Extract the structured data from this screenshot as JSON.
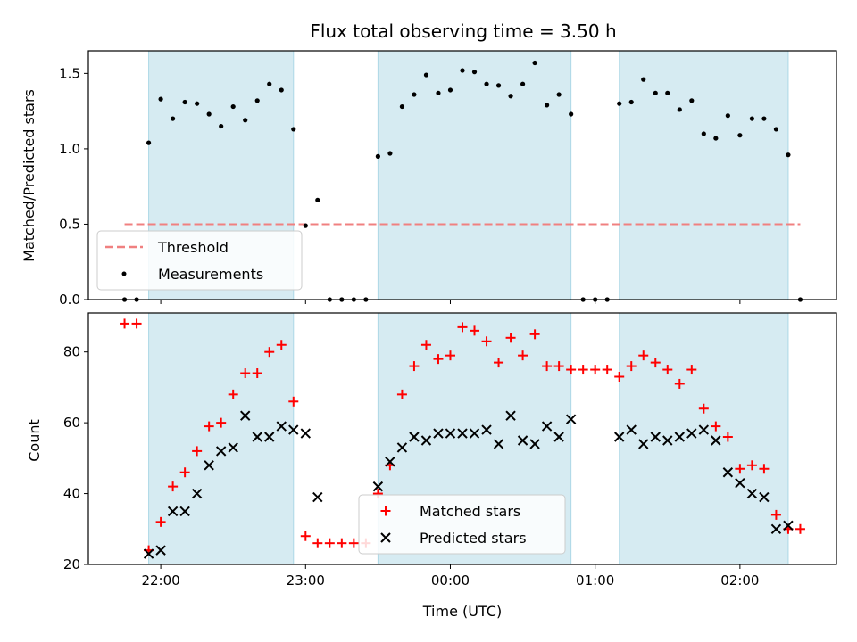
{
  "title": "Flux total observing time = 3.50 h",
  "colors": {
    "shade": "#add8e6",
    "threshold": "#f08080",
    "measurement": "#000000",
    "matched": "#ff0000",
    "predicted": "#000000"
  },
  "chart_data": [
    {
      "type": "scatter",
      "ylabel": "Matched/Predicted stars",
      "ylim": [
        0,
        1.65
      ],
      "yticks": [
        0.0,
        0.5,
        1.0,
        1.5
      ],
      "ytick_labels": [
        "0.0",
        "0.5",
        "1.0",
        "1.5"
      ],
      "shaded_intervals": [
        [
          "21:55",
          "22:55"
        ],
        [
          "23:30",
          "00:50"
        ],
        [
          "01:10",
          "02:20"
        ]
      ],
      "threshold": {
        "name": "Threshold",
        "value": 0.5,
        "x_range": [
          "21:45",
          "02:25"
        ]
      },
      "legend": {
        "position": "lower-left",
        "entries": [
          "Threshold",
          "Measurements"
        ]
      },
      "series": [
        {
          "name": "Measurements",
          "marker": "dot",
          "points": [
            [
              "21:45",
              0.0
            ],
            [
              "21:50",
              0.0
            ],
            [
              "21:55",
              1.04
            ],
            [
              "22:00",
              1.33
            ],
            [
              "22:05",
              1.2
            ],
            [
              "22:10",
              1.31
            ],
            [
              "22:15",
              1.3
            ],
            [
              "22:20",
              1.23
            ],
            [
              "22:25",
              1.15
            ],
            [
              "22:30",
              1.28
            ],
            [
              "22:35",
              1.19
            ],
            [
              "22:40",
              1.32
            ],
            [
              "22:45",
              1.43
            ],
            [
              "22:50",
              1.39
            ],
            [
              "22:55",
              1.13
            ],
            [
              "23:00",
              0.49
            ],
            [
              "23:05",
              0.66
            ],
            [
              "23:10",
              0.0
            ],
            [
              "23:15",
              0.0
            ],
            [
              "23:20",
              0.0
            ],
            [
              "23:25",
              0.0
            ],
            [
              "23:30",
              0.95
            ],
            [
              "23:35",
              0.97
            ],
            [
              "23:40",
              1.28
            ],
            [
              "23:45",
              1.36
            ],
            [
              "23:50",
              1.49
            ],
            [
              "23:55",
              1.37
            ],
            [
              "00:00",
              1.39
            ],
            [
              "00:05",
              1.52
            ],
            [
              "00:10",
              1.51
            ],
            [
              "00:15",
              1.43
            ],
            [
              "00:20",
              1.42
            ],
            [
              "00:25",
              1.35
            ],
            [
              "00:30",
              1.43
            ],
            [
              "00:35",
              1.57
            ],
            [
              "00:40",
              1.29
            ],
            [
              "00:45",
              1.36
            ],
            [
              "00:50",
              1.23
            ],
            [
              "00:55",
              0.0
            ],
            [
              "01:00",
              0.0
            ],
            [
              "01:05",
              0.0
            ],
            [
              "01:10",
              1.3
            ],
            [
              "01:15",
              1.31
            ],
            [
              "01:20",
              1.46
            ],
            [
              "01:25",
              1.37
            ],
            [
              "01:30",
              1.37
            ],
            [
              "01:35",
              1.26
            ],
            [
              "01:40",
              1.32
            ],
            [
              "01:45",
              1.1
            ],
            [
              "01:50",
              1.07
            ],
            [
              "01:55",
              1.22
            ],
            [
              "02:00",
              1.09
            ],
            [
              "02:05",
              1.2
            ],
            [
              "02:10",
              1.2
            ],
            [
              "02:15",
              1.13
            ],
            [
              "02:20",
              0.96
            ],
            [
              "02:25",
              0.0
            ]
          ]
        }
      ]
    },
    {
      "type": "scatter",
      "ylabel": "Count",
      "xlabel": "Time (UTC)",
      "ylim": [
        20,
        91
      ],
      "yticks": [
        20,
        40,
        60,
        80
      ],
      "ytick_labels": [
        "20",
        "40",
        "60",
        "80"
      ],
      "xticks": [
        "22:00",
        "23:00",
        "00:00",
        "01:00",
        "02:00"
      ],
      "xtick_labels": [
        "22:00",
        "23:00",
        "00:00",
        "01:00",
        "02:00"
      ],
      "x_range": [
        "21:30",
        "02:40"
      ],
      "shaded_intervals": [
        [
          "21:55",
          "22:55"
        ],
        [
          "23:30",
          "00:50"
        ],
        [
          "01:10",
          "02:20"
        ]
      ],
      "legend": {
        "position": "lower-center",
        "entries": [
          "Matched stars",
          "Predicted stars"
        ]
      },
      "series": [
        {
          "name": "Matched stars",
          "marker": "plus",
          "points": [
            [
              "21:45",
              88
            ],
            [
              "21:50",
              88
            ],
            [
              "21:55",
              24
            ],
            [
              "22:00",
              32
            ],
            [
              "22:05",
              42
            ],
            [
              "22:10",
              46
            ],
            [
              "22:15",
              52
            ],
            [
              "22:20",
              59
            ],
            [
              "22:25",
              60
            ],
            [
              "22:30",
              68
            ],
            [
              "22:35",
              74
            ],
            [
              "22:40",
              74
            ],
            [
              "22:45",
              80
            ],
            [
              "22:50",
              82
            ],
            [
              "22:55",
              66
            ],
            [
              "23:00",
              28
            ],
            [
              "23:05",
              26
            ],
            [
              "23:10",
              26
            ],
            [
              "23:15",
              26
            ],
            [
              "23:20",
              26
            ],
            [
              "23:25",
              26
            ],
            [
              "23:30",
              40
            ],
            [
              "23:35",
              48
            ],
            [
              "23:40",
              68
            ],
            [
              "23:45",
              76
            ],
            [
              "23:50",
              82
            ],
            [
              "23:55",
              78
            ],
            [
              "00:00",
              79
            ],
            [
              "00:05",
              87
            ],
            [
              "00:10",
              86
            ],
            [
              "00:15",
              83
            ],
            [
              "00:20",
              77
            ],
            [
              "00:25",
              84
            ],
            [
              "00:30",
              79
            ],
            [
              "00:35",
              85
            ],
            [
              "00:40",
              76
            ],
            [
              "00:45",
              76
            ],
            [
              "00:50",
              75
            ],
            [
              "00:55",
              75
            ],
            [
              "01:00",
              75
            ],
            [
              "01:05",
              75
            ],
            [
              "01:10",
              73
            ],
            [
              "01:15",
              76
            ],
            [
              "01:20",
              79
            ],
            [
              "01:25",
              77
            ],
            [
              "01:30",
              75
            ],
            [
              "01:35",
              71
            ],
            [
              "01:40",
              75
            ],
            [
              "01:45",
              64
            ],
            [
              "01:50",
              59
            ],
            [
              "01:55",
              56
            ],
            [
              "02:00",
              47
            ],
            [
              "02:05",
              48
            ],
            [
              "02:10",
              47
            ],
            [
              "02:15",
              34
            ],
            [
              "02:20",
              30
            ],
            [
              "02:25",
              30
            ]
          ]
        },
        {
          "name": "Predicted stars",
          "marker": "x",
          "points": [
            [
              "21:55",
              23
            ],
            [
              "22:00",
              24
            ],
            [
              "22:05",
              35
            ],
            [
              "22:10",
              35
            ],
            [
              "22:15",
              40
            ],
            [
              "22:20",
              48
            ],
            [
              "22:25",
              52
            ],
            [
              "22:30",
              53
            ],
            [
              "22:35",
              62
            ],
            [
              "22:40",
              56
            ],
            [
              "22:45",
              56
            ],
            [
              "22:50",
              59
            ],
            [
              "22:55",
              58
            ],
            [
              "23:00",
              57
            ],
            [
              "23:05",
              39
            ],
            [
              "23:30",
              42
            ],
            [
              "23:35",
              49
            ],
            [
              "23:40",
              53
            ],
            [
              "23:45",
              56
            ],
            [
              "23:50",
              55
            ],
            [
              "23:55",
              57
            ],
            [
              "00:00",
              57
            ],
            [
              "00:05",
              57
            ],
            [
              "00:10",
              57
            ],
            [
              "00:15",
              58
            ],
            [
              "00:20",
              54
            ],
            [
              "00:25",
              62
            ],
            [
              "00:30",
              55
            ],
            [
              "00:35",
              54
            ],
            [
              "00:40",
              59
            ],
            [
              "00:45",
              56
            ],
            [
              "00:50",
              61
            ],
            [
              "01:10",
              56
            ],
            [
              "01:15",
              58
            ],
            [
              "01:20",
              54
            ],
            [
              "01:25",
              56
            ],
            [
              "01:30",
              55
            ],
            [
              "01:35",
              56
            ],
            [
              "01:40",
              57
            ],
            [
              "01:45",
              58
            ],
            [
              "01:50",
              55
            ],
            [
              "01:55",
              46
            ],
            [
              "02:00",
              43
            ],
            [
              "02:05",
              40
            ],
            [
              "02:10",
              39
            ],
            [
              "02:15",
              30
            ],
            [
              "02:20",
              31
            ]
          ]
        }
      ]
    }
  ]
}
